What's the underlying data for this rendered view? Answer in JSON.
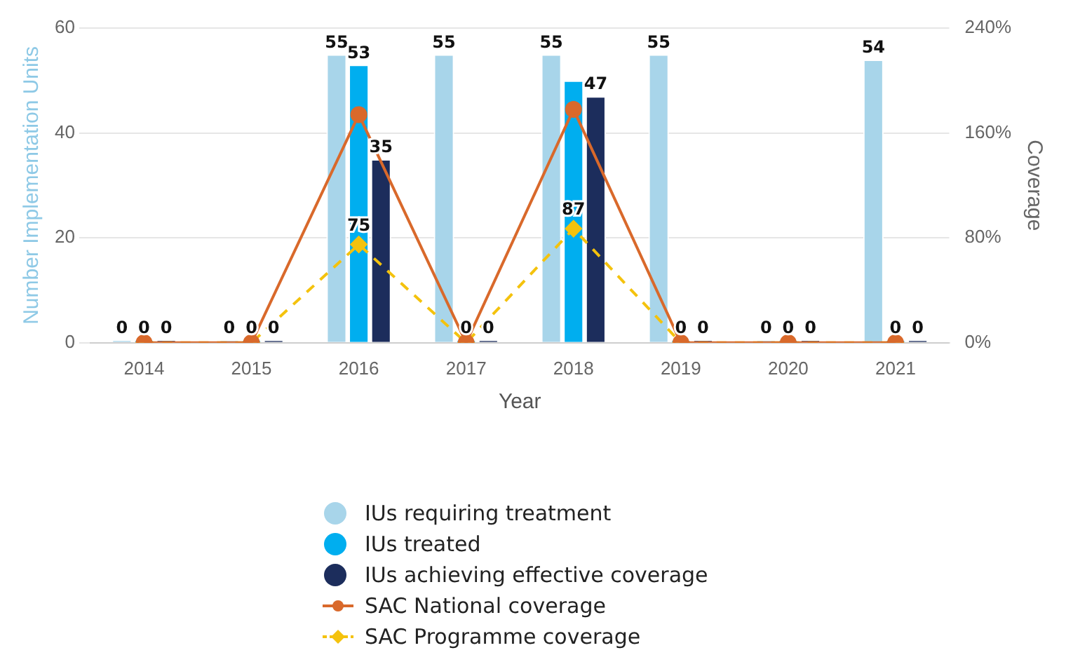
{
  "chart_data": {
    "type": "bar",
    "xlabel": "Year",
    "ylabel": "Number Implementation Units",
    "y2label": "Coverage",
    "categories": [
      "2014",
      "2015",
      "2016",
      "2017",
      "2018",
      "2019",
      "2020",
      "2021"
    ],
    "ylim": [
      0,
      60
    ],
    "yticks": [
      0,
      20,
      40,
      60
    ],
    "y2lim": [
      0,
      240
    ],
    "y2ticks": [
      {
        "value": 0,
        "label": "0%"
      },
      {
        "value": 80,
        "label": "80%"
      },
      {
        "value": 160,
        "label": "160%"
      },
      {
        "value": 240,
        "label": "240%"
      }
    ],
    "grid": "y",
    "legend": "bottom",
    "series": [
      {
        "name": "IUs requiring treatment",
        "color": "#a8d5ea",
        "values": [
          0,
          0,
          55,
          55,
          55,
          55,
          0,
          54
        ],
        "value_labels": [
          "0",
          "0",
          "55",
          "55",
          "55",
          "55",
          "0",
          "54"
        ]
      },
      {
        "name": "IUs treated",
        "color": "#00aeef",
        "values": [
          0,
          0,
          53,
          0,
          50,
          0,
          0,
          0
        ],
        "value_labels": [
          "0",
          "0",
          "53",
          "0",
          null,
          "0",
          "0",
          "0"
        ]
      },
      {
        "name": "IUs achieving effective coverage",
        "color": "#1c2d5c",
        "values": [
          0,
          0,
          35,
          0,
          47,
          0,
          0,
          0
        ],
        "value_labels": [
          "0",
          "0",
          "35",
          "0",
          "47",
          "0",
          "0",
          "0"
        ]
      },
      {
        "name": "SAC National coverage",
        "type": "line",
        "axis": "y2",
        "color": "#d9692b",
        "marker": "circle",
        "line_style": "solid",
        "values": [
          0,
          0,
          174,
          0,
          178,
          0,
          0,
          0
        ]
      },
      {
        "name": "SAC Programme coverage",
        "type": "line",
        "axis": "y2",
        "color": "#f4c20d",
        "marker": "diamond",
        "line_style": "dashed",
        "values": [
          0,
          0,
          75,
          0,
          87,
          0,
          0,
          0
        ],
        "value_labels": [
          null,
          null,
          "75",
          null,
          "87",
          null,
          null,
          null
        ]
      }
    ]
  }
}
